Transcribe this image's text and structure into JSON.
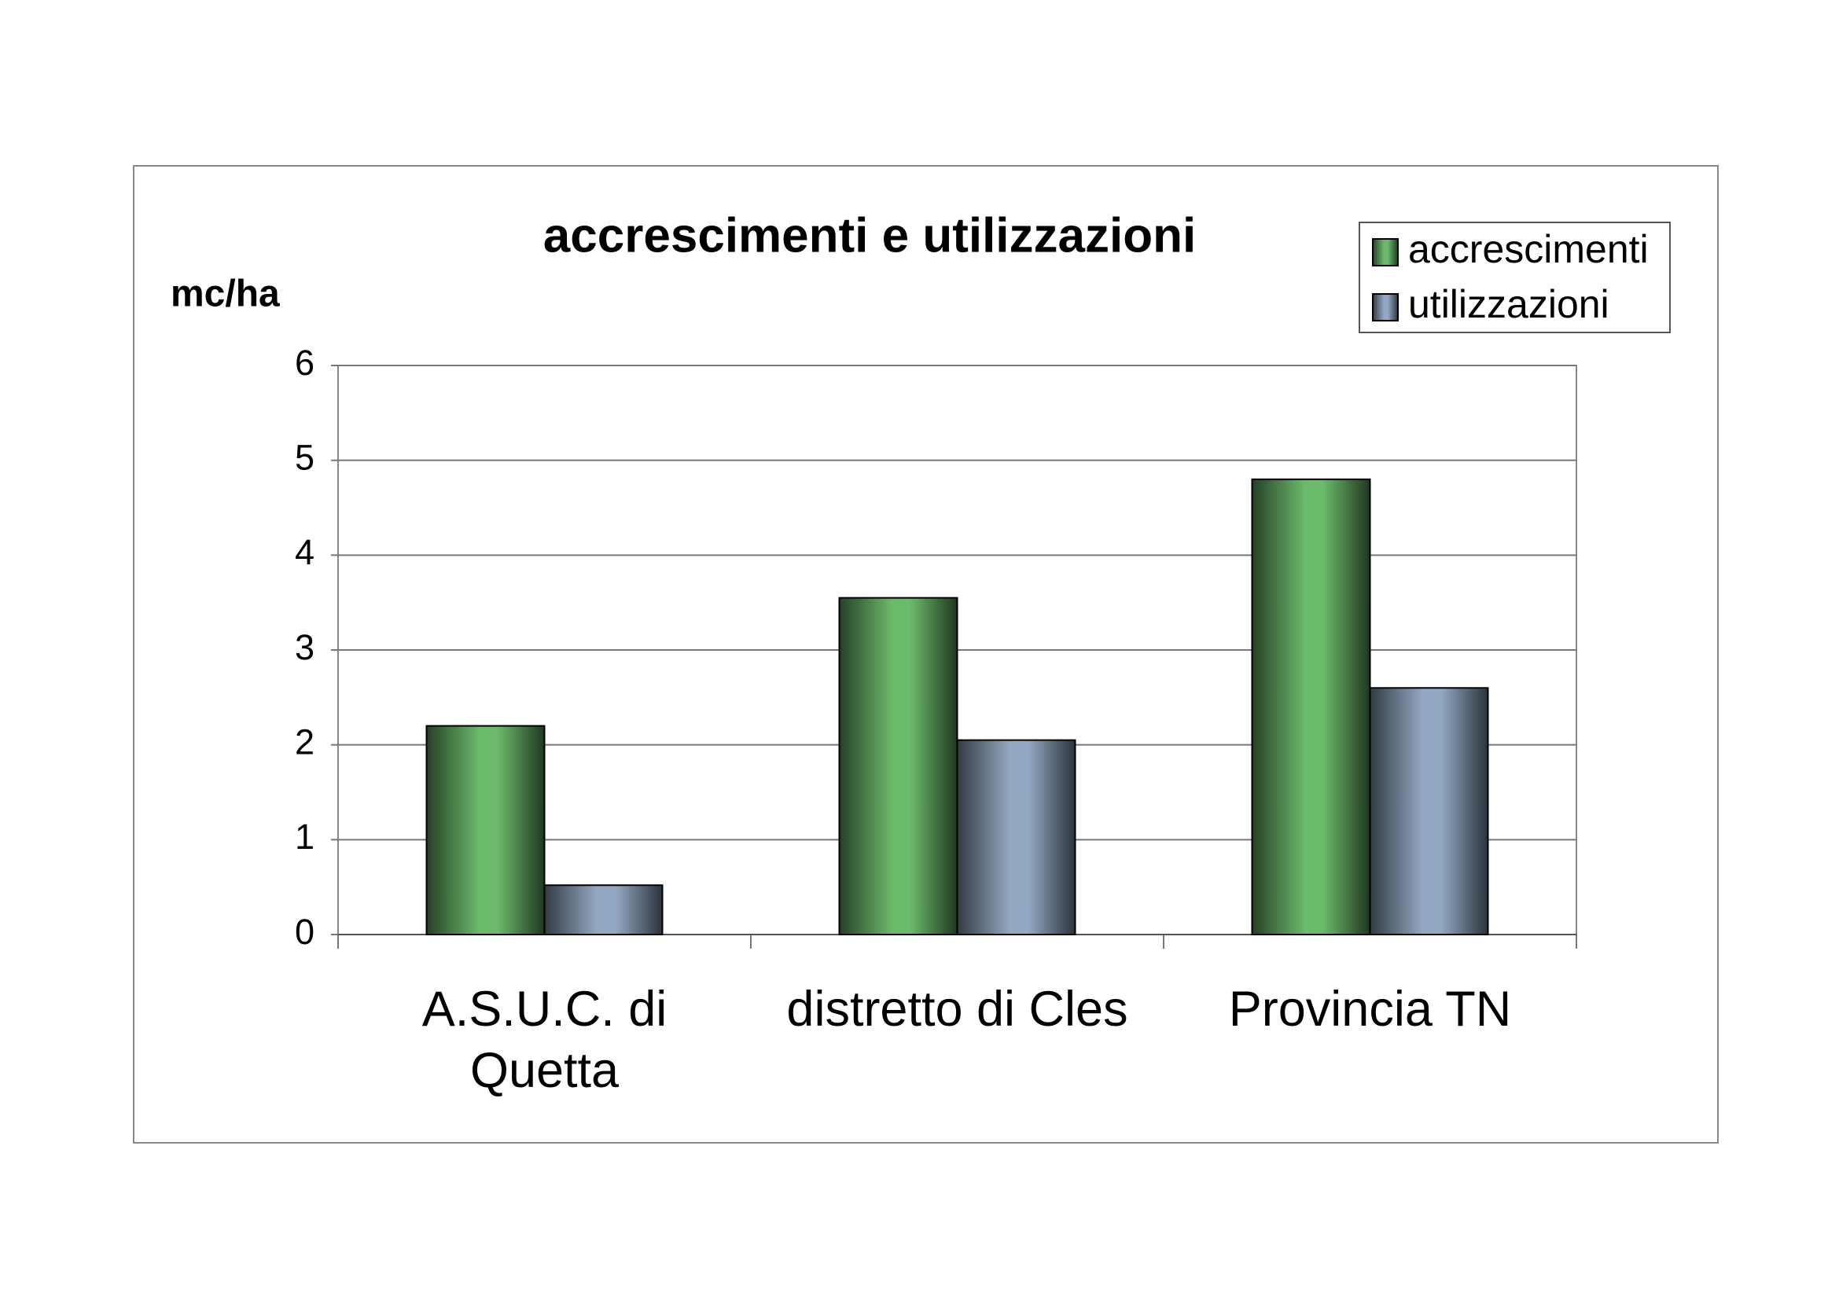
{
  "chart_data": {
    "type": "bar",
    "title": "accrescimenti e utilizzazioni",
    "y_label": "mc/ha",
    "categories": [
      "A.S.U.C. di Quetta",
      "distretto di Cles",
      "Provincia TN"
    ],
    "series": [
      {
        "name": "accrescimenti",
        "color": "#6cba6c",
        "values": [
          2.2,
          3.55,
          4.8
        ]
      },
      {
        "name": "utilizzazioni",
        "color": "#93a9c3",
        "values": [
          0.52,
          2.05,
          2.6
        ]
      }
    ],
    "ylim": [
      0,
      6
    ],
    "yticks": [
      0,
      1,
      2,
      3,
      4,
      5,
      6
    ],
    "grid": true,
    "legend": "top-right"
  }
}
